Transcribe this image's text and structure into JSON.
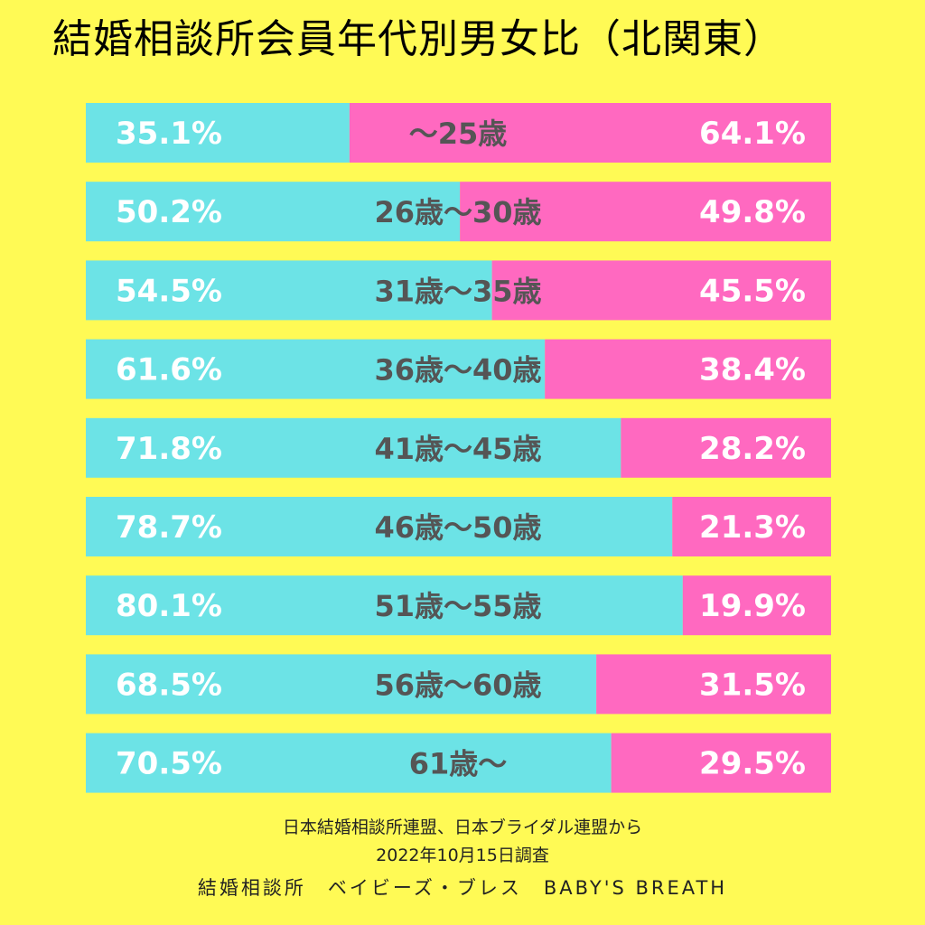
{
  "colors": {
    "background": "#FFFA55",
    "male": "#6CE3E6",
    "female": "#FF69C0",
    "value_text": "#FFFFFF",
    "category_text": "#555555"
  },
  "chart_data": {
    "type": "bar",
    "orientation": "horizontal",
    "stacked": "percent",
    "title": "結婚相談所会員年代別男女比（北関東）",
    "categories": [
      "〜25歳",
      "26歳〜30歳",
      "31歳〜35歳",
      "36歳〜40歳",
      "41歳〜45歳",
      "46歳〜50歳",
      "51歳〜55歳",
      "56歳〜60歳",
      "61歳〜"
    ],
    "series": [
      {
        "color": "#6CE3E6",
        "values": [
          35.1,
          50.2,
          54.5,
          61.6,
          71.8,
          78.7,
          80.1,
          68.5,
          70.5
        ],
        "labels": [
          "35.1%",
          "50.2%",
          "54.5%",
          "61.6%",
          "71.8%",
          "78.7%",
          "80.1%",
          "68.5%",
          "70.5%"
        ]
      },
      {
        "color": "#FF69C0",
        "values": [
          64.1,
          49.8,
          45.5,
          38.4,
          28.2,
          21.3,
          19.9,
          31.5,
          29.5
        ],
        "labels": [
          "64.1%",
          "49.8%",
          "45.5%",
          "38.4%",
          "28.2%",
          "21.3%",
          "19.9%",
          "31.5%",
          "29.5%"
        ]
      }
    ],
    "xlim": [
      0,
      100
    ],
    "grid": false,
    "legend": "none"
  },
  "footer": {
    "source": "日本結婚相談所連盟、日本ブライダル連盟から",
    "date": "2022年10月15日調査",
    "brand": "結婚相談所　ベイビーズ・ブレス　BABY'S BREATH"
  }
}
